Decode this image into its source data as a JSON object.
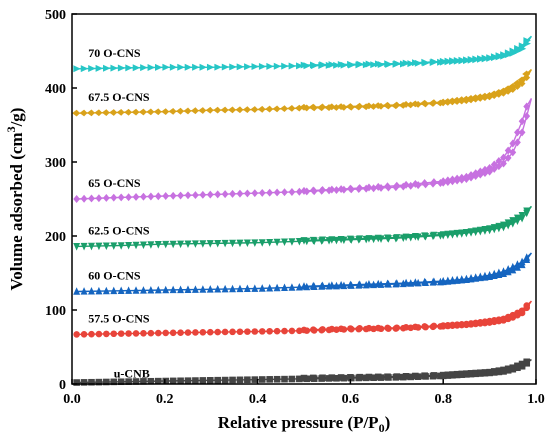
{
  "chart_data": {
    "type": "line",
    "xlabel": "Relative pressure (P/P",
    "xlabel_sub": "0",
    "xlabel_end": ")",
    "ylabel": "Volume adsorbed (cm",
    "ylabel_sup": "3",
    "ylabel_end": "/g)",
    "xlim": [
      0.0,
      1.0
    ],
    "ylim": [
      0,
      500
    ],
    "xticks": [
      "0.0",
      "0.2",
      "0.4",
      "0.6",
      "0.8",
      "1.0"
    ],
    "yticks": [
      "0",
      "100",
      "200",
      "300",
      "400",
      "500"
    ],
    "grid": false,
    "series": [
      {
        "name": "u-CNB",
        "color": "#444444",
        "marker": "square",
        "adsorption": [
          [
            0.01,
            2
          ],
          [
            0.1,
            3
          ],
          [
            0.2,
            4
          ],
          [
            0.3,
            5
          ],
          [
            0.4,
            6
          ],
          [
            0.5,
            7
          ],
          [
            0.6,
            8
          ],
          [
            0.7,
            9
          ],
          [
            0.8,
            11
          ],
          [
            0.85,
            13
          ],
          [
            0.9,
            15
          ],
          [
            0.93,
            17
          ],
          [
            0.95,
            20
          ],
          [
            0.97,
            24
          ],
          [
            0.98,
            28
          ],
          [
            0.99,
            33
          ]
        ],
        "desorption": [
          [
            0.99,
            33
          ],
          [
            0.98,
            30
          ],
          [
            0.97,
            27
          ],
          [
            0.95,
            22
          ],
          [
            0.93,
            19
          ],
          [
            0.9,
            16
          ],
          [
            0.85,
            14
          ],
          [
            0.8,
            12
          ],
          [
            0.7,
            10
          ],
          [
            0.6,
            9
          ],
          [
            0.5,
            8
          ]
        ]
      },
      {
        "name": "57.5 O-CNS",
        "color": "#e8443a",
        "marker": "circle",
        "adsorption": [
          [
            0.01,
            67
          ],
          [
            0.1,
            68
          ],
          [
            0.2,
            69
          ],
          [
            0.3,
            70
          ],
          [
            0.4,
            71
          ],
          [
            0.5,
            72
          ],
          [
            0.6,
            74
          ],
          [
            0.7,
            75
          ],
          [
            0.8,
            78
          ],
          [
            0.85,
            80
          ],
          [
            0.9,
            83
          ],
          [
            0.93,
            86
          ],
          [
            0.95,
            90
          ],
          [
            0.97,
            96
          ],
          [
            0.98,
            103
          ],
          [
            0.99,
            112
          ]
        ],
        "desorption": [
          [
            0.99,
            112
          ],
          [
            0.98,
            106
          ],
          [
            0.97,
            99
          ],
          [
            0.95,
            93
          ],
          [
            0.93,
            88
          ],
          [
            0.9,
            85
          ],
          [
            0.85,
            81
          ],
          [
            0.8,
            79
          ],
          [
            0.7,
            76
          ],
          [
            0.6,
            75
          ],
          [
            0.5,
            73
          ]
        ]
      },
      {
        "name": "60 O-CNS",
        "color": "#1565c0",
        "marker": "triangle-up",
        "adsorption": [
          [
            0.01,
            125
          ],
          [
            0.1,
            126
          ],
          [
            0.2,
            127
          ],
          [
            0.3,
            128
          ],
          [
            0.4,
            129
          ],
          [
            0.5,
            131
          ],
          [
            0.6,
            133
          ],
          [
            0.7,
            135
          ],
          [
            0.8,
            138
          ],
          [
            0.85,
            141
          ],
          [
            0.9,
            145
          ],
          [
            0.93,
            149
          ],
          [
            0.95,
            154
          ],
          [
            0.97,
            161
          ],
          [
            0.98,
            168
          ],
          [
            0.99,
            177
          ]
        ],
        "desorption": [
          [
            0.99,
            177
          ],
          [
            0.98,
            171
          ],
          [
            0.97,
            165
          ],
          [
            0.95,
            158
          ],
          [
            0.93,
            152
          ],
          [
            0.9,
            147
          ],
          [
            0.85,
            142
          ],
          [
            0.8,
            139
          ],
          [
            0.7,
            136
          ],
          [
            0.6,
            134
          ],
          [
            0.5,
            132
          ]
        ]
      },
      {
        "name": "62.5 O-CNS",
        "color": "#1a9e6a",
        "marker": "triangle-down",
        "adsorption": [
          [
            0.01,
            186
          ],
          [
            0.1,
            187
          ],
          [
            0.2,
            189
          ],
          [
            0.3,
            190
          ],
          [
            0.4,
            191
          ],
          [
            0.5,
            193
          ],
          [
            0.6,
            195
          ],
          [
            0.7,
            197
          ],
          [
            0.8,
            201
          ],
          [
            0.85,
            204
          ],
          [
            0.9,
            208
          ],
          [
            0.93,
            212
          ],
          [
            0.95,
            217
          ],
          [
            0.97,
            224
          ],
          [
            0.98,
            231
          ],
          [
            0.99,
            240
          ]
        ],
        "desorption": [
          [
            0.99,
            240
          ],
          [
            0.98,
            234
          ],
          [
            0.97,
            228
          ],
          [
            0.95,
            221
          ],
          [
            0.93,
            215
          ],
          [
            0.9,
            210
          ],
          [
            0.85,
            205
          ],
          [
            0.8,
            202
          ],
          [
            0.7,
            198
          ],
          [
            0.6,
            196
          ],
          [
            0.5,
            194
          ]
        ]
      },
      {
        "name": "65 O-CNS",
        "color": "#c771e0",
        "marker": "diamond",
        "adsorption": [
          [
            0.01,
            250
          ],
          [
            0.1,
            252
          ],
          [
            0.2,
            254
          ],
          [
            0.3,
            256
          ],
          [
            0.4,
            258
          ],
          [
            0.5,
            260
          ],
          [
            0.6,
            263
          ],
          [
            0.7,
            266
          ],
          [
            0.8,
            272
          ],
          [
            0.85,
            277
          ],
          [
            0.9,
            287
          ],
          [
            0.93,
            298
          ],
          [
            0.95,
            313
          ],
          [
            0.97,
            340
          ],
          [
            0.98,
            362
          ],
          [
            0.99,
            386
          ]
        ],
        "desorption": [
          [
            0.99,
            386
          ],
          [
            0.98,
            375
          ],
          [
            0.97,
            355
          ],
          [
            0.95,
            325
          ],
          [
            0.93,
            306
          ],
          [
            0.9,
            292
          ],
          [
            0.85,
            280
          ],
          [
            0.8,
            274
          ],
          [
            0.7,
            268
          ],
          [
            0.6,
            264
          ],
          [
            0.5,
            261
          ]
        ]
      },
      {
        "name": "67.5 O-CNS",
        "color": "#d9a21b",
        "marker": "diamond-left",
        "adsorption": [
          [
            0.01,
            366
          ],
          [
            0.1,
            367
          ],
          [
            0.2,
            368
          ],
          [
            0.3,
            370
          ],
          [
            0.4,
            371
          ],
          [
            0.5,
            373
          ],
          [
            0.6,
            374
          ],
          [
            0.7,
            376
          ],
          [
            0.8,
            380
          ],
          [
            0.85,
            383
          ],
          [
            0.9,
            388
          ],
          [
            0.93,
            393
          ],
          [
            0.95,
            398
          ],
          [
            0.97,
            406
          ],
          [
            0.98,
            414
          ],
          [
            0.99,
            425
          ]
        ],
        "desorption": [
          [
            0.99,
            425
          ],
          [
            0.98,
            419
          ],
          [
            0.97,
            411
          ],
          [
            0.95,
            402
          ],
          [
            0.93,
            396
          ],
          [
            0.9,
            390
          ],
          [
            0.85,
            385
          ],
          [
            0.8,
            381
          ],
          [
            0.7,
            377
          ],
          [
            0.6,
            375
          ],
          [
            0.5,
            374
          ]
        ]
      },
      {
        "name": "70 O-CNS",
        "color": "#26c6c6",
        "marker": "triangle-right",
        "adsorption": [
          [
            0.01,
            426
          ],
          [
            0.1,
            427
          ],
          [
            0.2,
            428
          ],
          [
            0.3,
            428
          ],
          [
            0.4,
            429
          ],
          [
            0.5,
            430
          ],
          [
            0.6,
            431
          ],
          [
            0.7,
            432
          ],
          [
            0.8,
            435
          ],
          [
            0.85,
            437
          ],
          [
            0.9,
            440
          ],
          [
            0.93,
            443
          ],
          [
            0.95,
            447
          ],
          [
            0.97,
            453
          ],
          [
            0.98,
            460
          ],
          [
            0.99,
            470
          ]
        ],
        "desorption": [
          [
            0.99,
            470
          ],
          [
            0.98,
            464
          ],
          [
            0.97,
            457
          ],
          [
            0.95,
            450
          ],
          [
            0.93,
            445
          ],
          [
            0.9,
            441
          ],
          [
            0.85,
            438
          ],
          [
            0.8,
            436
          ],
          [
            0.7,
            433
          ],
          [
            0.6,
            432
          ],
          [
            0.5,
            431
          ]
        ]
      }
    ]
  }
}
